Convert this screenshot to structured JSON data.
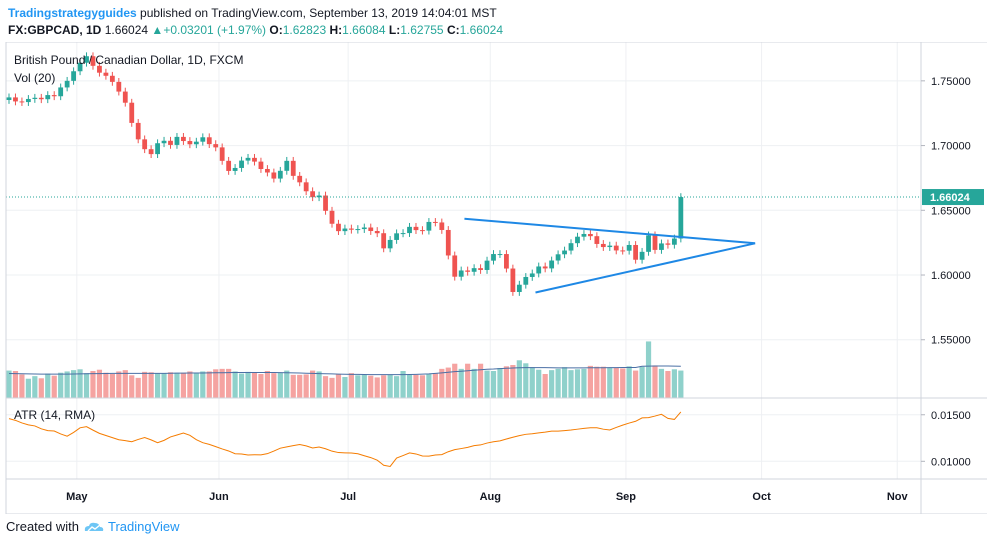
{
  "header": {
    "author": "Tradingstrategyguides",
    "published": "published on TradingView.com, September 13, 2019 14:04:01 MST",
    "symbol": "FX:GBPCAD, 1D",
    "last": "1.66024",
    "change_arrow": "▲",
    "change": "+0.03201 (+1.97%)",
    "o_label": "O:",
    "o_value": "1.62823",
    "h_label": "H:",
    "h_value": "1.66084",
    "l_label": "L:",
    "l_value": "1.62755",
    "c_label": "C:",
    "c_value": "1.66024"
  },
  "footer": {
    "prefix": "Created with",
    "brand": "TradingView",
    "logo_icon": "tradingview-cloud-icon"
  },
  "colors": {
    "up": "#26a69a",
    "down": "#ef5350",
    "vol_up": "#8fd1cb",
    "vol_down": "#f5a3a1",
    "vol_ma": "#4a6fa5",
    "atr": "#f57c00",
    "trendline": "#1e88e5",
    "last_price_bg": "#26a69a"
  },
  "chart_data": [
    {
      "type": "candlestick",
      "title": "British Pound / Canadian Dollar, 1D, FXCM",
      "pair": "GBPCAD",
      "ylim": [
        1.505,
        1.78
      ],
      "y_ticks": [
        1.75,
        1.7,
        1.65,
        1.6,
        1.55
      ],
      "y_tick_labels": [
        "1.75000",
        "1.70000",
        "1.65000",
        "1.60000",
        "1.55000"
      ],
      "x_tick_labels": [
        "May",
        "Jun",
        "Jul",
        "Aug",
        "Sep",
        "Oct",
        "Nov"
      ],
      "x_tick_bars": [
        10.5,
        32.5,
        52.5,
        74.5,
        95.5,
        116.5,
        137.5
      ],
      "last_price_label": "1.66024",
      "last_price": 1.66024,
      "close": [
        1.7372,
        1.7341,
        1.7336,
        1.736,
        1.7369,
        1.7358,
        1.739,
        1.7381,
        1.7449,
        1.75,
        1.7574,
        1.764,
        1.769,
        1.7616,
        1.7563,
        1.7539,
        1.7492,
        1.7417,
        1.7331,
        1.7175,
        1.7048,
        1.6972,
        1.6934,
        1.7018,
        1.7037,
        1.7005,
        1.7067,
        1.7035,
        1.701,
        1.703,
        1.7064,
        1.7011,
        1.6986,
        1.6882,
        1.6804,
        1.6827,
        1.6884,
        1.6905,
        1.6876,
        1.6819,
        1.6792,
        1.6745,
        1.6805,
        1.6882,
        1.6766,
        1.6716,
        1.6647,
        1.6601,
        1.6614,
        1.6496,
        1.6396,
        1.6339,
        1.6359,
        1.635,
        1.6355,
        1.6367,
        1.634,
        1.6323,
        1.6206,
        1.6271,
        1.6322,
        1.6324,
        1.6372,
        1.6347,
        1.6343,
        1.641,
        1.6406,
        1.6348,
        1.6151,
        1.5987,
        1.6035,
        1.6025,
        1.6053,
        1.6039,
        1.6111,
        1.6162,
        1.6162,
        1.605,
        1.5869,
        1.5925,
        1.5985,
        1.6012,
        1.6066,
        1.6051,
        1.6112,
        1.616,
        1.6189,
        1.6246,
        1.6296,
        1.6317,
        1.63,
        1.624,
        1.6216,
        1.6227,
        1.619,
        1.6188,
        1.6232,
        1.6118,
        1.6179,
        1.6306,
        1.6194,
        1.6244,
        1.6234,
        1.6282,
        1.6602
      ],
      "volume_ylim": [
        0,
        70000
      ],
      "volume": [
        32000,
        31500,
        27500,
        22500,
        25500,
        23000,
        28500,
        26000,
        29500,
        31000,
        32500,
        33500,
        29000,
        31500,
        33000,
        29500,
        28000,
        31000,
        32500,
        26500,
        23500,
        30500,
        30000,
        28500,
        28500,
        30000,
        29500,
        29500,
        31000,
        29000,
        31000,
        31000,
        33500,
        34000,
        34000,
        31000,
        28500,
        30500,
        30000,
        28000,
        31500,
        29000,
        29500,
        32000,
        27000,
        27000,
        27500,
        32000,
        31000,
        25500,
        23500,
        28000,
        24500,
        29000,
        26500,
        27500,
        26000,
        24000,
        26500,
        27000,
        25500,
        31500,
        27000,
        27000,
        26500,
        28500,
        28500,
        34000,
        35500,
        40000,
        34000,
        40000,
        34000,
        40000,
        32000,
        31500,
        35000,
        37000,
        38500,
        44000,
        40500,
        36000,
        33000,
        28000,
        32500,
        34000,
        36000,
        32500,
        33500,
        34000,
        37500,
        36500,
        36500,
        35500,
        35500,
        34500,
        37000,
        32000,
        36500,
        66000,
        38000,
        34000,
        31500,
        33500,
        32000
      ],
      "vol_ma": [
        28600,
        28500,
        28300,
        28100,
        28000,
        27900,
        27900,
        27800,
        27800,
        27900,
        28000,
        28200,
        28300,
        28400,
        28500,
        28600,
        28700,
        28700,
        28800,
        28800,
        28700,
        28700,
        28700,
        28700,
        28800,
        28900,
        29000,
        29000,
        29100,
        29100,
        29200,
        29300,
        29400,
        29500,
        29600,
        29700,
        29700,
        29700,
        29800,
        29800,
        29800,
        29700,
        29600,
        29500,
        29300,
        29100,
        28900,
        28700,
        28500,
        28300,
        28100,
        27900,
        27700,
        27600,
        27500,
        27400,
        27300,
        27300,
        27200,
        27200,
        27200,
        27300,
        27400,
        27600,
        27900,
        28200,
        28700,
        29300,
        30000,
        30700,
        31200,
        31800,
        32400,
        33000,
        33500,
        33800,
        34300,
        34700,
        35000,
        35300,
        35400,
        35500,
        35500,
        35400,
        35300,
        35200,
        35100,
        35100,
        35100,
        35200,
        35300,
        35300,
        35300,
        35400,
        35500,
        35600,
        35600,
        35600,
        37000,
        37200,
        37300,
        37300,
        37300,
        37200,
        37100
      ],
      "volume_indicator": "Vol (20)",
      "atr_indicator": "ATR (14, RMA)",
      "atr_ylim": [
        0.0081,
        0.0168
      ],
      "atr_ticks": [
        0.015,
        0.01
      ],
      "atr_tick_labels": [
        "0.01500",
        "0.01000"
      ],
      "atr": [
        0.01458,
        0.0144,
        0.01412,
        0.01391,
        0.0138,
        0.01349,
        0.0133,
        0.01325,
        0.01294,
        0.0127,
        0.0131,
        0.0136,
        0.01372,
        0.01335,
        0.013,
        0.01277,
        0.01254,
        0.01232,
        0.01222,
        0.0121,
        0.01235,
        0.01256,
        0.0123,
        0.012,
        0.01225,
        0.01262,
        0.01283,
        0.01304,
        0.01279,
        0.01232,
        0.012,
        0.01182,
        0.01158,
        0.01133,
        0.01111,
        0.01081,
        0.01079,
        0.01068,
        0.0107,
        0.01069,
        0.01082,
        0.0111,
        0.01141,
        0.01155,
        0.01168,
        0.0118,
        0.01166,
        0.01143,
        0.01154,
        0.01135,
        0.01109,
        0.01094,
        0.01091,
        0.01089,
        0.01081,
        0.0106,
        0.0104,
        0.01012,
        0.00958,
        0.00945,
        0.01035,
        0.01062,
        0.0109,
        0.01079,
        0.01057,
        0.01056,
        0.01068,
        0.01072,
        0.01103,
        0.01125,
        0.01137,
        0.0115,
        0.01168,
        0.01176,
        0.01196,
        0.0121,
        0.0122,
        0.0124,
        0.01258,
        0.01276,
        0.0129,
        0.01296,
        0.01306,
        0.01313,
        0.01324,
        0.01324,
        0.0133,
        0.01336,
        0.01345,
        0.01354,
        0.01361,
        0.0136,
        0.01345,
        0.01337,
        0.01364,
        0.01389,
        0.01411,
        0.0143,
        0.01466,
        0.01469,
        0.01486,
        0.01505,
        0.01461,
        0.0145,
        0.0153
      ]
    }
  ]
}
